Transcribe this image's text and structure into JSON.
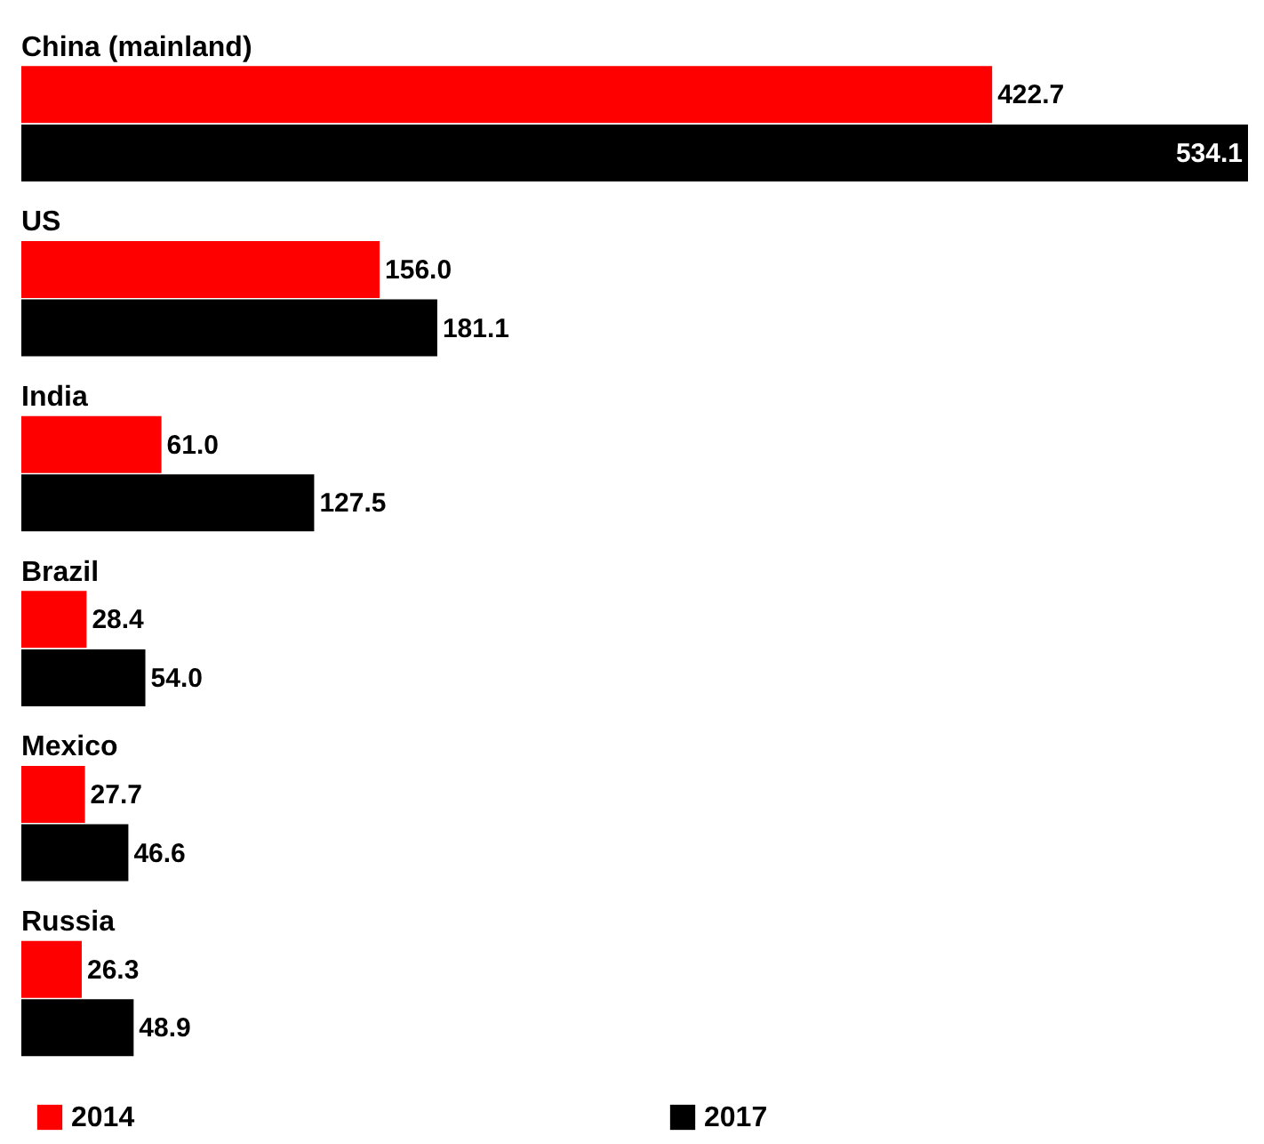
{
  "chart_data": {
    "type": "bar",
    "orientation": "horizontal",
    "categories": [
      "China (mainland)",
      "US",
      "India",
      "Brazil",
      "Mexico",
      "Russia"
    ],
    "series": [
      {
        "name": "2014",
        "color": "#ff0000",
        "values": [
          422.7,
          156,
          61,
          28.4,
          27.7,
          26.3
        ],
        "value_labels": [
          "422.7",
          "156.0",
          "61.0",
          "28.4",
          "27.7",
          "26.3"
        ]
      },
      {
        "name": "2017",
        "color": "#000000",
        "values": [
          534.1,
          181.1,
          127.5,
          54,
          46.6,
          48.9
        ],
        "value_labels": [
          "534.1",
          "181.1",
          "127.5",
          "54.0",
          "46.6",
          "48.9"
        ]
      }
    ],
    "legend": "bottom"
  }
}
